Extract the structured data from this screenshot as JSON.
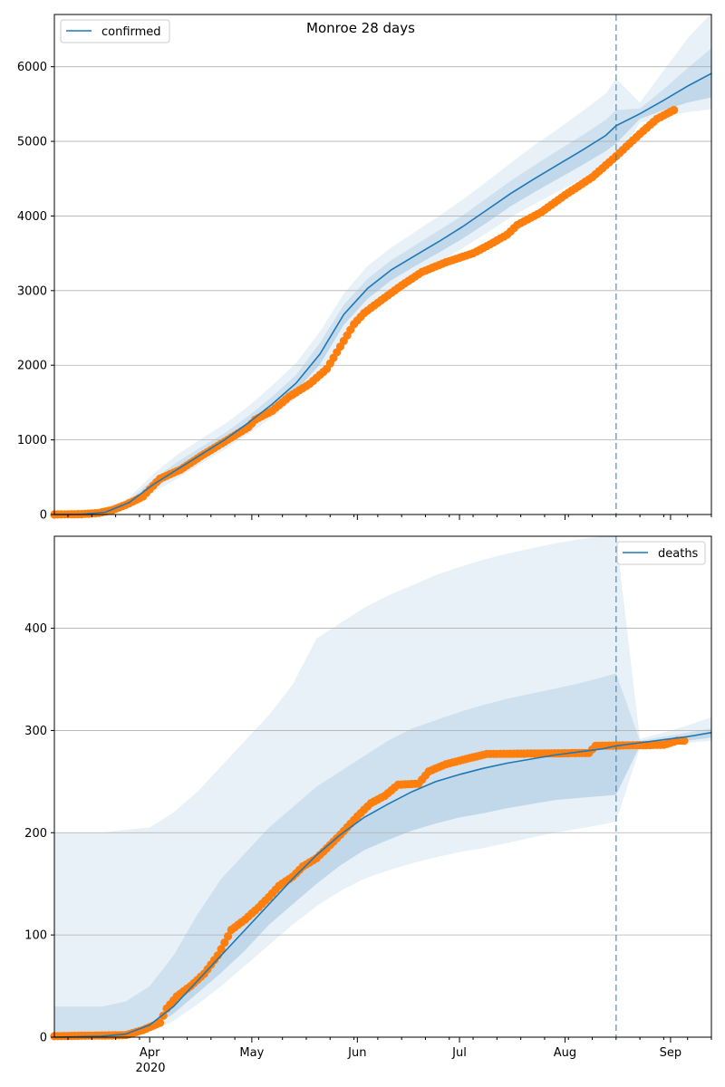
{
  "figure_title": "Monroe 28 days",
  "chart_data": [
    {
      "type": "line",
      "panel": "top",
      "legend": "confirmed",
      "legend_position": "top-left",
      "line_color": "#1f77b4",
      "band_color": "#1f77b4",
      "observed_color": "#ff7f0e",
      "grid": "horizontal",
      "ylim": [
        0,
        6700
      ],
      "yticks": [
        0,
        1000,
        2000,
        3000,
        4000,
        5000,
        6000
      ],
      "ytick_labels": [
        "0",
        "1000",
        "2000",
        "3000",
        "4000",
        "5000",
        "6000"
      ],
      "forecast_start": "2020-08-16",
      "model": [
        [
          "2020-03-04",
          0,
          0,
          0,
          0,
          0
        ],
        [
          "2020-03-12",
          2,
          0,
          1,
          4,
          6
        ],
        [
          "2020-03-19",
          30,
          10,
          20,
          40,
          60
        ],
        [
          "2020-03-26",
          160,
          100,
          130,
          190,
          230
        ],
        [
          "2020-04-02",
          400,
          300,
          350,
          470,
          540
        ],
        [
          "2020-04-09",
          600,
          480,
          540,
          700,
          800
        ],
        [
          "2020-04-16",
          800,
          680,
          740,
          900,
          1010
        ],
        [
          "2020-04-23",
          1000,
          870,
          940,
          1090,
          1210
        ],
        [
          "2020-04-30",
          1230,
          1080,
          1160,
          1320,
          1450
        ],
        [
          "2020-05-07",
          1480,
          1300,
          1390,
          1580,
          1730
        ],
        [
          "2020-05-14",
          1760,
          1560,
          1660,
          1870,
          2030
        ],
        [
          "2020-05-21",
          2150,
          1900,
          2010,
          2300,
          2450
        ],
        [
          "2020-05-28",
          2680,
          2420,
          2540,
          2810,
          2960
        ],
        [
          "2020-06-04",
          3030,
          2770,
          2890,
          3160,
          3330
        ],
        [
          "2020-06-11",
          3280,
          3020,
          3140,
          3410,
          3580
        ],
        [
          "2020-06-18",
          3470,
          3210,
          3330,
          3610,
          3790
        ],
        [
          "2020-06-25",
          3660,
          3390,
          3510,
          3810,
          4000
        ],
        [
          "2020-07-02",
          3860,
          3570,
          3700,
          4010,
          4220
        ],
        [
          "2020-07-09",
          4080,
          3770,
          3910,
          4240,
          4460
        ],
        [
          "2020-07-16",
          4300,
          3980,
          4130,
          4470,
          4710
        ],
        [
          "2020-07-23",
          4500,
          4160,
          4320,
          4680,
          4950
        ],
        [
          "2020-07-30",
          4690,
          4330,
          4500,
          4880,
          5170
        ],
        [
          "2020-08-06",
          4880,
          4500,
          4680,
          5080,
          5400
        ],
        [
          "2020-08-13",
          5080,
          4670,
          4870,
          5290,
          5640
        ],
        [
          "2020-08-16",
          5210,
          4760,
          4970,
          5420,
          5840
        ],
        [
          "2020-08-23",
          5370,
          5250,
          5300,
          5440,
          5520
        ],
        [
          "2020-08-30",
          5550,
          5330,
          5420,
          5700,
          5950
        ],
        [
          "2020-09-06",
          5740,
          5390,
          5520,
          5980,
          6380
        ],
        [
          "2020-09-13",
          5910,
          5430,
          5590,
          6250,
          6720
        ]
      ],
      "observed_keypoints": [
        [
          "2020-03-04",
          0
        ],
        [
          "2020-03-12",
          5
        ],
        [
          "2020-03-17",
          20
        ],
        [
          "2020-03-21",
          60
        ],
        [
          "2020-03-25",
          130
        ],
        [
          "2020-03-30",
          240
        ],
        [
          "2020-04-04",
          480
        ],
        [
          "2020-04-10",
          600
        ],
        [
          "2020-04-16",
          780
        ],
        [
          "2020-04-21",
          920
        ],
        [
          "2020-04-26",
          1060
        ],
        [
          "2020-04-30",
          1170
        ],
        [
          "2020-05-02",
          1270
        ],
        [
          "2020-05-07",
          1390
        ],
        [
          "2020-05-12",
          1580
        ],
        [
          "2020-05-18",
          1750
        ],
        [
          "2020-05-23",
          1950
        ],
        [
          "2020-05-27",
          2250
        ],
        [
          "2020-05-31",
          2550
        ],
        [
          "2020-06-03",
          2700
        ],
        [
          "2020-06-08",
          2870
        ],
        [
          "2020-06-14",
          3070
        ],
        [
          "2020-06-20",
          3250
        ],
        [
          "2020-06-27",
          3380
        ],
        [
          "2020-07-05",
          3500
        ],
        [
          "2020-07-10",
          3620
        ],
        [
          "2020-07-15",
          3750
        ],
        [
          "2020-07-18",
          3880
        ],
        [
          "2020-07-25",
          4050
        ],
        [
          "2020-08-01",
          4280
        ],
        [
          "2020-08-09",
          4520
        ],
        [
          "2020-08-16",
          4800
        ],
        [
          "2020-08-23",
          5100
        ],
        [
          "2020-08-28",
          5300
        ],
        [
          "2020-09-02",
          5420
        ]
      ]
    },
    {
      "type": "line",
      "panel": "bottom",
      "legend": "deaths",
      "legend_position": "top-right",
      "line_color": "#1f77b4",
      "band_color": "#1f77b4",
      "observed_color": "#ff7f0e",
      "grid": "horizontal",
      "ylim": [
        0,
        490
      ],
      "yticks": [
        0,
        100,
        200,
        300,
        400
      ],
      "ytick_labels": [
        "0",
        "100",
        "200",
        "300",
        "400"
      ],
      "forecast_start": "2020-08-16",
      "model": [
        [
          "2020-03-04",
          0,
          0,
          0,
          30,
          200
        ],
        [
          "2020-03-18",
          1,
          0,
          0,
          30,
          200
        ],
        [
          "2020-03-25",
          3,
          0,
          1,
          35,
          203
        ],
        [
          "2020-04-01",
          12,
          5,
          8,
          50,
          205
        ],
        [
          "2020-04-08",
          30,
          16,
          23,
          80,
          220
        ],
        [
          "2020-04-15",
          55,
          32,
          43,
          120,
          240
        ],
        [
          "2020-04-22",
          80,
          50,
          63,
          155,
          265
        ],
        [
          "2020-04-29",
          105,
          70,
          85,
          180,
          290
        ],
        [
          "2020-05-06",
          130,
          90,
          110,
          205,
          315
        ],
        [
          "2020-05-13",
          155,
          110,
          130,
          225,
          345
        ],
        [
          "2020-05-20",
          178,
          128,
          150,
          245,
          390
        ],
        [
          "2020-05-27",
          198,
          143,
          168,
          260,
          405
        ],
        [
          "2020-06-03",
          215,
          155,
          183,
          275,
          420
        ],
        [
          "2020-06-10",
          228,
          163,
          193,
          290,
          432
        ],
        [
          "2020-06-17",
          240,
          170,
          202,
          302,
          442
        ],
        [
          "2020-06-24",
          250,
          176,
          209,
          310,
          452
        ],
        [
          "2020-07-01",
          257,
          181,
          215,
          318,
          460
        ],
        [
          "2020-07-08",
          263,
          185,
          219,
          325,
          467
        ],
        [
          "2020-07-15",
          268,
          190,
          224,
          331,
          473
        ],
        [
          "2020-07-22",
          272,
          195,
          228,
          336,
          478
        ],
        [
          "2020-07-29",
          276,
          200,
          232,
          341,
          483
        ],
        [
          "2020-08-05",
          279,
          204,
          234,
          346,
          487
        ],
        [
          "2020-08-12",
          282,
          208,
          236,
          352,
          490
        ],
        [
          "2020-08-16",
          285,
          211,
          237,
          356,
          490
        ],
        [
          "2020-08-23",
          288,
          283,
          285,
          290,
          292
        ],
        [
          "2020-08-30",
          291,
          286,
          288,
          294,
          298
        ],
        [
          "2020-09-06",
          294,
          288,
          290,
          298,
          305
        ],
        [
          "2020-09-13",
          298,
          290,
          293,
          302,
          313
        ]
      ],
      "observed_keypoints": [
        [
          "2020-03-04",
          1
        ],
        [
          "2020-03-25",
          2
        ],
        [
          "2020-03-30",
          7
        ],
        [
          "2020-04-04",
          14
        ],
        [
          "2020-04-06",
          28
        ],
        [
          "2020-04-09",
          40
        ],
        [
          "2020-04-13",
          50
        ],
        [
          "2020-04-17",
          62
        ],
        [
          "2020-04-21",
          80
        ],
        [
          "2020-04-25",
          105
        ],
        [
          "2020-04-29",
          115
        ],
        [
          "2020-05-03",
          127
        ],
        [
          "2020-05-06",
          137
        ],
        [
          "2020-05-09",
          148
        ],
        [
          "2020-05-13",
          157
        ],
        [
          "2020-05-16",
          167
        ],
        [
          "2020-05-20",
          175
        ],
        [
          "2020-05-24",
          188
        ],
        [
          "2020-05-27",
          198
        ],
        [
          "2020-06-01",
          216
        ],
        [
          "2020-06-05",
          229
        ],
        [
          "2020-06-09",
          236
        ],
        [
          "2020-06-13",
          247
        ],
        [
          "2020-06-19",
          248
        ],
        [
          "2020-06-22",
          260
        ],
        [
          "2020-06-27",
          267
        ],
        [
          "2020-07-04",
          273
        ],
        [
          "2020-07-09",
          277
        ],
        [
          "2020-08-08",
          278
        ],
        [
          "2020-08-10",
          285
        ],
        [
          "2020-08-30",
          286
        ],
        [
          "2020-09-03",
          290
        ],
        [
          "2020-09-05",
          290
        ]
      ]
    }
  ],
  "x_axis": {
    "range": [
      "2020-03-04",
      "2020-09-13"
    ],
    "major_ticks": [
      {
        "date": "2020-04-01",
        "label": "Apr"
      },
      {
        "date": "2020-05-01",
        "label": "May"
      },
      {
        "date": "2020-06-01",
        "label": "Jun"
      },
      {
        "date": "2020-07-01",
        "label": "Jul"
      },
      {
        "date": "2020-08-01",
        "label": "Aug"
      },
      {
        "date": "2020-09-01",
        "label": "Sep"
      }
    ],
    "year_label": "2020",
    "minor_ticks": "weekly (Sundays)"
  }
}
